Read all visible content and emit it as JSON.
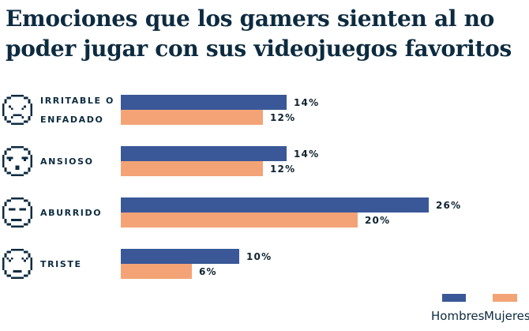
{
  "header": {
    "title": "Emociones que los gamers sienten al no\npoder jugar con sus videojuegos favoritos"
  },
  "colors": {
    "hombres": "#3a5898",
    "mujeres": "#f4a376",
    "text": "#0d2b40",
    "background": "#ffffff"
  },
  "legend": {
    "position": "bottom-right",
    "items": [
      {
        "label": "Hombres",
        "color": "#3a5898"
      },
      {
        "label": "Mujeres",
        "color": "#f4a376"
      }
    ]
  },
  "chart_data": {
    "type": "bar",
    "orientation": "horizontal",
    "title": "Emociones que los gamers sienten al no poder jugar con sus videojuegos favoritos",
    "categories": [
      "IRRITABLE O ENFADADO",
      "ANSIOSO",
      "ABURRIDO",
      "TRISTE"
    ],
    "category_label_lines": [
      [
        "IRRITABLE O",
        "ENFADADO"
      ],
      [
        "ANSIOSO"
      ],
      [
        "ABURRIDO"
      ],
      [
        "TRISTE"
      ]
    ],
    "category_icons": [
      "angry-face-pixel-icon",
      "anxious-face-pixel-icon",
      "bored-face-pixel-icon",
      "sad-face-pixel-icon"
    ],
    "series": [
      {
        "name": "Hombres",
        "color": "#3a5898",
        "values": [
          14,
          14,
          26,
          10
        ]
      },
      {
        "name": "Mujeres",
        "color": "#f4a376",
        "values": [
          12,
          12,
          20,
          6
        ]
      }
    ],
    "value_suffix": "%",
    "value_range": [
      0,
      30
    ],
    "grid": false,
    "data_labels": true,
    "legend_position": "bottom-right"
  }
}
